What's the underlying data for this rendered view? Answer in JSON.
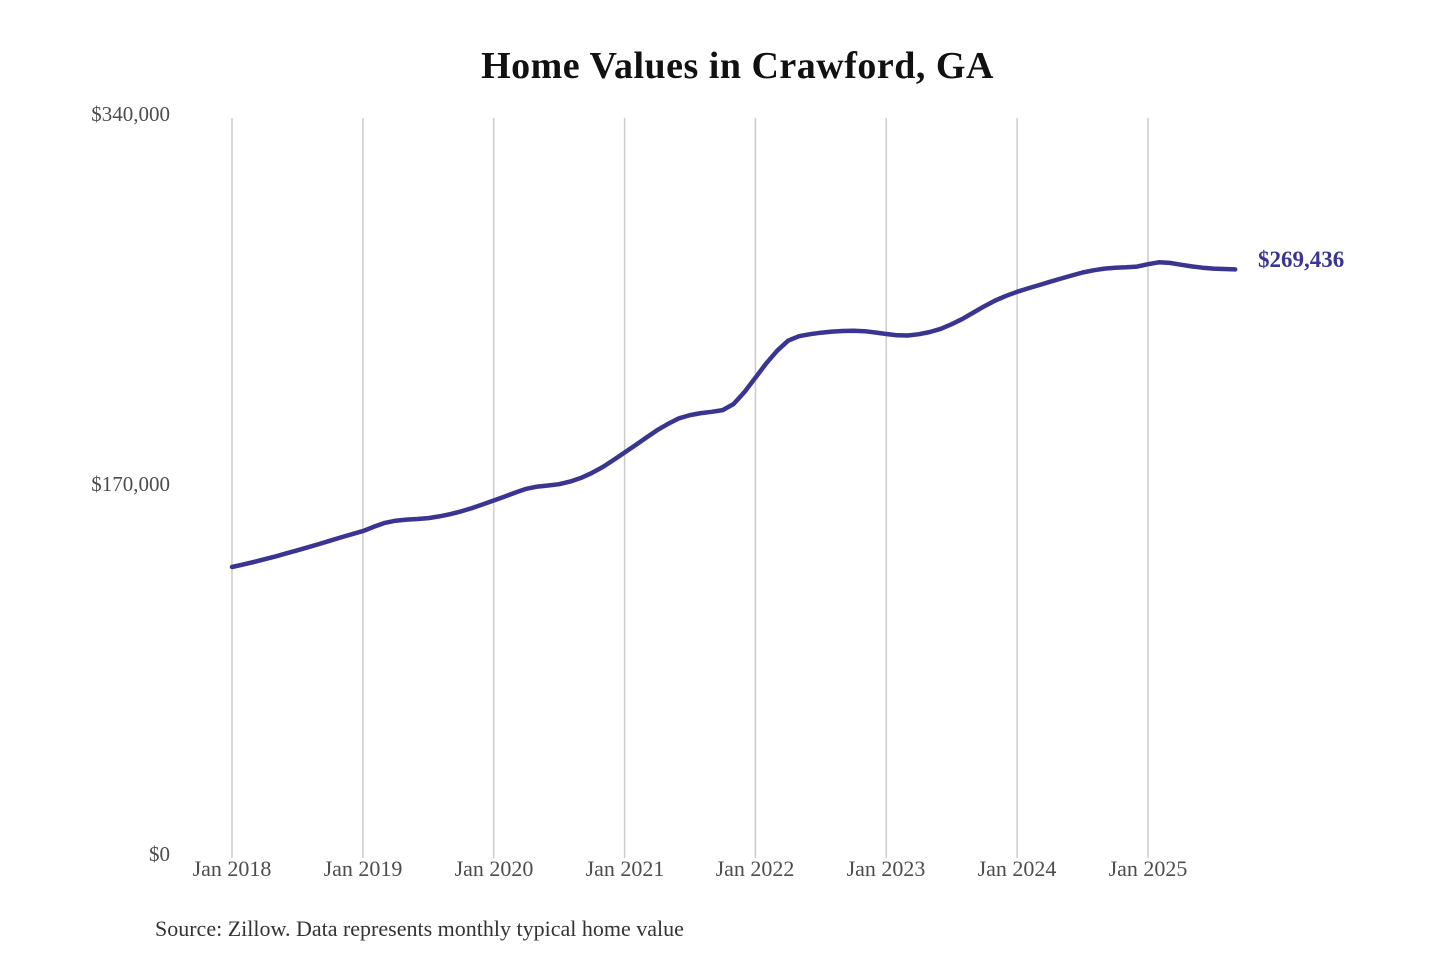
{
  "title": "Home Values in Crawford, GA",
  "source_note": "Source: Zillow. Data represents monthly typical home value",
  "end_label": "$269,436",
  "colors": {
    "line": "#3a3492",
    "end_label": "#3a3492",
    "grid": "#cccccc",
    "axis_text": "#4d4d4d",
    "title_text": "#111111",
    "background": "#ffffff"
  },
  "chart_data": {
    "type": "line",
    "title": "Home Values in Crawford, GA",
    "xlabel": "",
    "ylabel": "",
    "ylim": [
      0,
      340000
    ],
    "y_tick_labels": [
      "$340,000",
      "$170,000",
      "$0"
    ],
    "y_tick_values": [
      340000,
      170000,
      0
    ],
    "x_tick_labels": [
      "Jan 2018",
      "Jan 2019",
      "Jan 2020",
      "Jan 2021",
      "Jan 2022",
      "Jan 2023",
      "Jan 2024",
      "Jan 2025"
    ],
    "grid": "vertical-only",
    "legend": "none",
    "annotation": "$269,436",
    "series": [
      {
        "name": "Monthly typical home value",
        "start_month": "2018-01",
        "frequency": "monthly",
        "final_value": 269436,
        "values": [
          132500,
          133600,
          134800,
          136100,
          137400,
          138800,
          140200,
          141600,
          143100,
          144600,
          146100,
          147600,
          149000,
          151000,
          152800,
          153800,
          154300,
          154600,
          155000,
          155800,
          156800,
          158100,
          159600,
          161300,
          163100,
          164900,
          166800,
          168500,
          169500,
          170000,
          170600,
          171800,
          173500,
          175800,
          178500,
          181800,
          185200,
          188600,
          192100,
          195500,
          198400,
          200900,
          202400,
          203300,
          203900,
          204700,
          207500,
          213000,
          219600,
          226200,
          232000,
          236600,
          238700,
          239600,
          240300,
          240800,
          241100,
          241200,
          241000,
          240400,
          239700,
          239100,
          239000,
          239600,
          240600,
          242100,
          244200,
          246700,
          249600,
          252500,
          255100,
          257300,
          259100,
          260700,
          262200,
          263700,
          265200,
          266600,
          268000,
          269000,
          269800,
          270200,
          270400,
          270700,
          271800,
          272700,
          272400,
          271600,
          270800,
          270200,
          269800,
          269600,
          269436
        ]
      }
    ]
  }
}
